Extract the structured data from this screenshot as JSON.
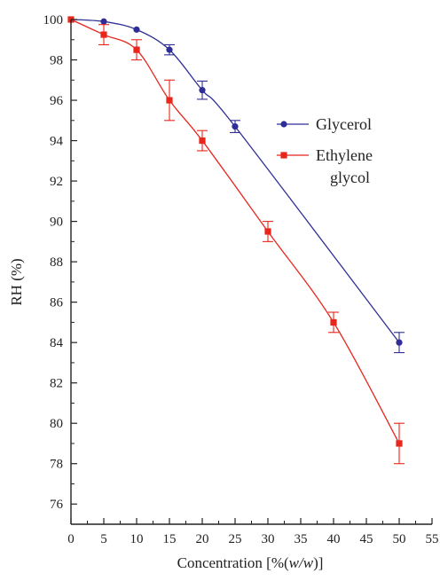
{
  "chart_data": {
    "type": "line",
    "title": "",
    "xlabel_parts": [
      "Concentration [%(",
      "w/w",
      ")]"
    ],
    "ylabel": "RH (%)",
    "xlim": [
      0,
      55
    ],
    "ylim": [
      75,
      100
    ],
    "x_ticks": [
      0,
      5,
      10,
      15,
      20,
      25,
      30,
      35,
      40,
      45,
      50,
      55
    ],
    "y_ticks": [
      76,
      78,
      80,
      82,
      84,
      86,
      88,
      90,
      92,
      94,
      96,
      98,
      100
    ],
    "legend_position": "right",
    "grid": false,
    "series": [
      {
        "name": "Glycerol",
        "color": "#2e2e96",
        "marker": "circle",
        "x": [
          0,
          5,
          10,
          15,
          20,
          25,
          50
        ],
        "y": [
          100,
          99.9,
          99.5,
          98.5,
          96.5,
          94.7,
          84.0
        ],
        "error": [
          0,
          0,
          0,
          0.25,
          0.45,
          0.3,
          0.5
        ]
      },
      {
        "name_lines": [
          "Ethylene",
          "glycol"
        ],
        "color": "#e8261c",
        "marker": "square",
        "x": [
          0,
          5,
          10,
          15,
          20,
          30,
          40,
          50
        ],
        "y": [
          100,
          99.25,
          98.5,
          96.0,
          94.0,
          89.5,
          85.0,
          79.0
        ],
        "error": [
          0,
          0.5,
          0.5,
          1.0,
          0.5,
          0.5,
          0.5,
          1.0
        ]
      }
    ]
  }
}
